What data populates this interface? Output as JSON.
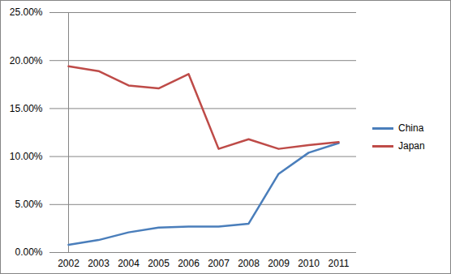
{
  "chart_data": {
    "type": "line",
    "categories": [
      "2002",
      "2003",
      "2004",
      "2005",
      "2006",
      "2007",
      "2008",
      "2009",
      "2010",
      "2011"
    ],
    "series": [
      {
        "name": "China",
        "color": "#4a7ebb",
        "values": [
          0.8,
          1.3,
          2.1,
          2.6,
          2.7,
          2.7,
          3.0,
          8.2,
          10.4,
          11.4
        ]
      },
      {
        "name": "Japan",
        "color": "#be4b48",
        "values": [
          19.4,
          18.9,
          17.4,
          17.1,
          18.6,
          10.8,
          11.8,
          10.8,
          11.2,
          11.5
        ]
      }
    ],
    "ylim": [
      0,
      25
    ],
    "yticks": [
      {
        "value": 0,
        "label": "0.00%"
      },
      {
        "value": 5,
        "label": "5.00%"
      },
      {
        "value": 10,
        "label": "10.00%"
      },
      {
        "value": 15,
        "label": "15.00%"
      },
      {
        "value": 20,
        "label": "20.00%"
      },
      {
        "value": 25,
        "label": "25.00%"
      }
    ],
    "grid": true,
    "legend": "right"
  }
}
